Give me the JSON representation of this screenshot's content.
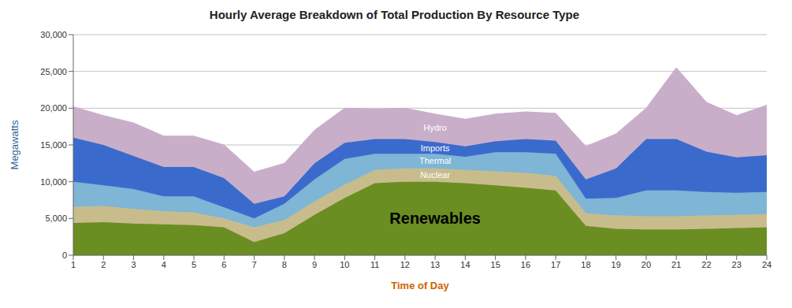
{
  "chart_data": {
    "type": "area",
    "title": "Hourly Average Breakdown of Total Production By Resource Type",
    "xlabel": "Time of Day",
    "ylabel": "Megawatts",
    "x": [
      1,
      2,
      3,
      4,
      5,
      6,
      7,
      8,
      9,
      10,
      11,
      12,
      13,
      14,
      15,
      16,
      17,
      18,
      19,
      20,
      21,
      22,
      23,
      24
    ],
    "series": [
      {
        "name": "Renewables",
        "color": "#6b8e23",
        "values": [
          4400,
          4500,
          4300,
          4200,
          4100,
          3800,
          1800,
          3000,
          5500,
          7800,
          9800,
          10000,
          10000,
          9800,
          9500,
          9200,
          8800,
          4000,
          3600,
          3500,
          3500,
          3600,
          3700,
          3800
        ]
      },
      {
        "name": "Nuclear",
        "color": "#c8bc8c",
        "values": [
          2200,
          2200,
          2000,
          1800,
          1700,
          1200,
          2000,
          1800,
          1800,
          1800,
          1800,
          1800,
          1800,
          1800,
          1900,
          2000,
          2000,
          1700,
          1800,
          1800,
          1800,
          1800,
          1800,
          1800
        ]
      },
      {
        "name": "Thermal",
        "color": "#7fb5d5",
        "values": [
          3400,
          2800,
          2700,
          2000,
          2200,
          1500,
          1200,
          2200,
          3000,
          3500,
          2200,
          2000,
          2000,
          1800,
          2600,
          2800,
          3000,
          2000,
          2400,
          3500,
          3500,
          3200,
          3000,
          3000
        ]
      },
      {
        "name": "Imports",
        "color": "#3a6bcc",
        "values": [
          6000,
          5500,
          4500,
          4000,
          4000,
          4000,
          2000,
          1000,
          2200,
          2200,
          2000,
          2000,
          1600,
          1400,
          1500,
          1800,
          1800,
          2600,
          4000,
          7000,
          7000,
          5500,
          4800,
          5000
        ]
      },
      {
        "name": "Hydro",
        "color": "#c9aec9",
        "values": [
          4200,
          4000,
          4500,
          4200,
          4200,
          4500,
          4300,
          4500,
          4500,
          4700,
          4100,
          4200,
          3800,
          3700,
          3700,
          3700,
          3700,
          4500,
          4700,
          4200,
          9700,
          6700,
          5700,
          6800
        ]
      }
    ],
    "stacked": true,
    "xlim": [
      1,
      24
    ],
    "xticks": [
      1,
      2,
      3,
      4,
      5,
      6,
      7,
      8,
      9,
      10,
      11,
      12,
      13,
      14,
      15,
      16,
      17,
      18,
      19,
      20,
      21,
      22,
      23,
      24
    ],
    "ylim": [
      0,
      30000
    ],
    "yticks": [
      0,
      {
        "value": 5000,
        "label": "5,000"
      },
      {
        "value": 10000,
        "label": "10,000"
      },
      {
        "value": 15000,
        "label": "15,000"
      },
      {
        "value": 20000,
        "label": "20,000"
      },
      {
        "value": 25000,
        "label": "25,000"
      },
      {
        "value": 30000,
        "label": "30,000"
      }
    ],
    "grid": true
  }
}
